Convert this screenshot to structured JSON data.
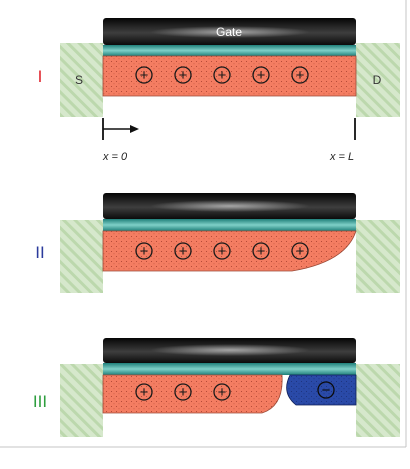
{
  "gate_label": "Gate",
  "source_label": "S",
  "drain_label": "D",
  "x_start_label": "x = 0",
  "x_end_label": "x = L",
  "plus_symbol": "+",
  "minus_symbol": "−",
  "panels": [
    {
      "roman": "I",
      "roman_color": "#e0252e",
      "holes": 5,
      "hole_region": "full-channel",
      "electron_region": "none"
    },
    {
      "roman": "II",
      "roman_color": "#2b3b9c",
      "holes": 5,
      "hole_region": "pinched-near-drain",
      "electron_region": "none"
    },
    {
      "roman": "III",
      "roman_color": "#2e9e3e",
      "holes": 3,
      "hole_region": "source-side",
      "electron_region": "drain-side",
      "electrons": 1
    }
  ],
  "colors": {
    "gate": "#1c1c1c",
    "dielectric": "#2e9a93",
    "hole_layer": "#f47d62",
    "electron_layer": "#2a4aa8",
    "contact": "#cfe4c4",
    "contact_hatch": "#a9cc98",
    "frame": "#c4c4c4"
  }
}
